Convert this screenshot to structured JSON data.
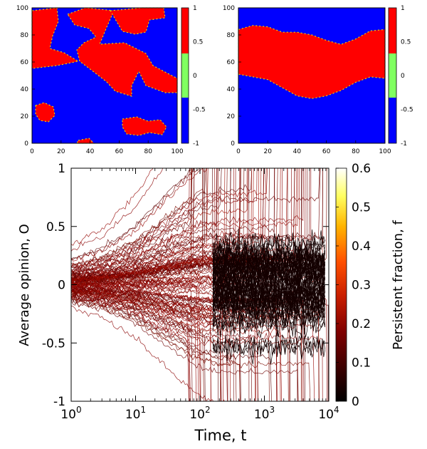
{
  "chart_data": [
    {
      "type": "heatmap",
      "panel": "top-left",
      "description_values": "two-state opinion field (+1 red, -1 blue) on a 100x100 lattice with red/blue patches",
      "xlim": [
        0,
        100
      ],
      "ylim": [
        0,
        100
      ],
      "x_ticks": [
        "0",
        "20",
        "40",
        "60",
        "80",
        "100"
      ],
      "y_ticks": [
        "0",
        "20",
        "40",
        "60",
        "80",
        "100"
      ],
      "colorbar": {
        "range": [
          -1,
          1
        ],
        "ticks": [
          "1",
          "0.5",
          "0",
          "-0.5",
          "-1"
        ],
        "bands": [
          {
            "from": 0.33,
            "to": 1,
            "color": "#ff0000"
          },
          {
            "from": -0.33,
            "to": 0.33,
            "color": "#80ff60"
          },
          {
            "from": -1,
            "to": -0.33,
            "color": "#0000ff"
          }
        ]
      }
    },
    {
      "type": "heatmap",
      "panel": "top-right",
      "description_values": "opinion field with a horizontal red band (+1) between y≈33 and y≈87, blue (-1) above and below",
      "xlim": [
        0,
        100
      ],
      "ylim": [
        0,
        100
      ],
      "x_ticks": [
        "0",
        "20",
        "40",
        "60",
        "80",
        "100"
      ],
      "y_ticks": [
        "0",
        "20",
        "40",
        "60",
        "80",
        "100"
      ],
      "band_upper": [
        [
          0,
          84
        ],
        [
          10,
          87
        ],
        [
          20,
          86
        ],
        [
          30,
          82
        ],
        [
          40,
          82
        ],
        [
          50,
          80
        ],
        [
          60,
          76
        ],
        [
          70,
          73
        ],
        [
          80,
          77
        ],
        [
          90,
          83
        ],
        [
          100,
          84
        ]
      ],
      "band_lower": [
        [
          0,
          51
        ],
        [
          10,
          49
        ],
        [
          20,
          47
        ],
        [
          30,
          41
        ],
        [
          40,
          35
        ],
        [
          50,
          33
        ],
        [
          60,
          35
        ],
        [
          70,
          39
        ],
        [
          80,
          45
        ],
        [
          90,
          49
        ],
        [
          100,
          48
        ]
      ],
      "colorbar": {
        "range": [
          -1,
          1
        ],
        "ticks": [
          "1",
          "0.5",
          "0",
          "-0.5",
          "-1"
        ],
        "bands": [
          {
            "from": 0.33,
            "to": 1,
            "color": "#ff0000"
          },
          {
            "from": -0.33,
            "to": 0.33,
            "color": "#80ff60"
          },
          {
            "from": -1,
            "to": -0.33,
            "color": "#0000ff"
          }
        ]
      }
    },
    {
      "type": "line",
      "panel": "bottom",
      "xlabel": "Time, t",
      "ylabel": "Average opinion, O",
      "x_scale": "log",
      "xlim": [
        1,
        10000
      ],
      "ylim": [
        -1,
        1
      ],
      "x_tick_values": [
        1,
        10,
        100,
        1000,
        10000
      ],
      "x_tick_exponents": [
        "0",
        "1",
        "2",
        "3",
        "4"
      ],
      "x_tick_base": "10",
      "y_ticks": [
        "1",
        "0.5",
        "0",
        "-0.5",
        "-1"
      ],
      "y_tick_values": [
        1,
        0.5,
        0,
        -0.5,
        -1
      ],
      "envelope": {
        "t": [
          1,
          3,
          10,
          30,
          100,
          200,
          300,
          1000,
          3000,
          10000
        ],
        "spread": [
          0.2,
          0.28,
          0.45,
          0.7,
          0.95,
          1,
          1,
          1,
          1,
          1
        ]
      },
      "colorbar": {
        "label": "Persistent fraction, f",
        "range": [
          0,
          0.6
        ],
        "ticks": [
          "0.6",
          "0.5",
          "0.4",
          "0.3",
          "0.2",
          "0.1",
          "0"
        ],
        "tick_values": [
          0.6,
          0.5,
          0.4,
          0.3,
          0.2,
          0.1,
          0
        ],
        "gradient": [
          "#000000",
          "#3a0000",
          "#800000",
          "#c81e00",
          "#ff5000",
          "#ffb400",
          "#ffff60",
          "#ffffff"
        ]
      }
    }
  ]
}
